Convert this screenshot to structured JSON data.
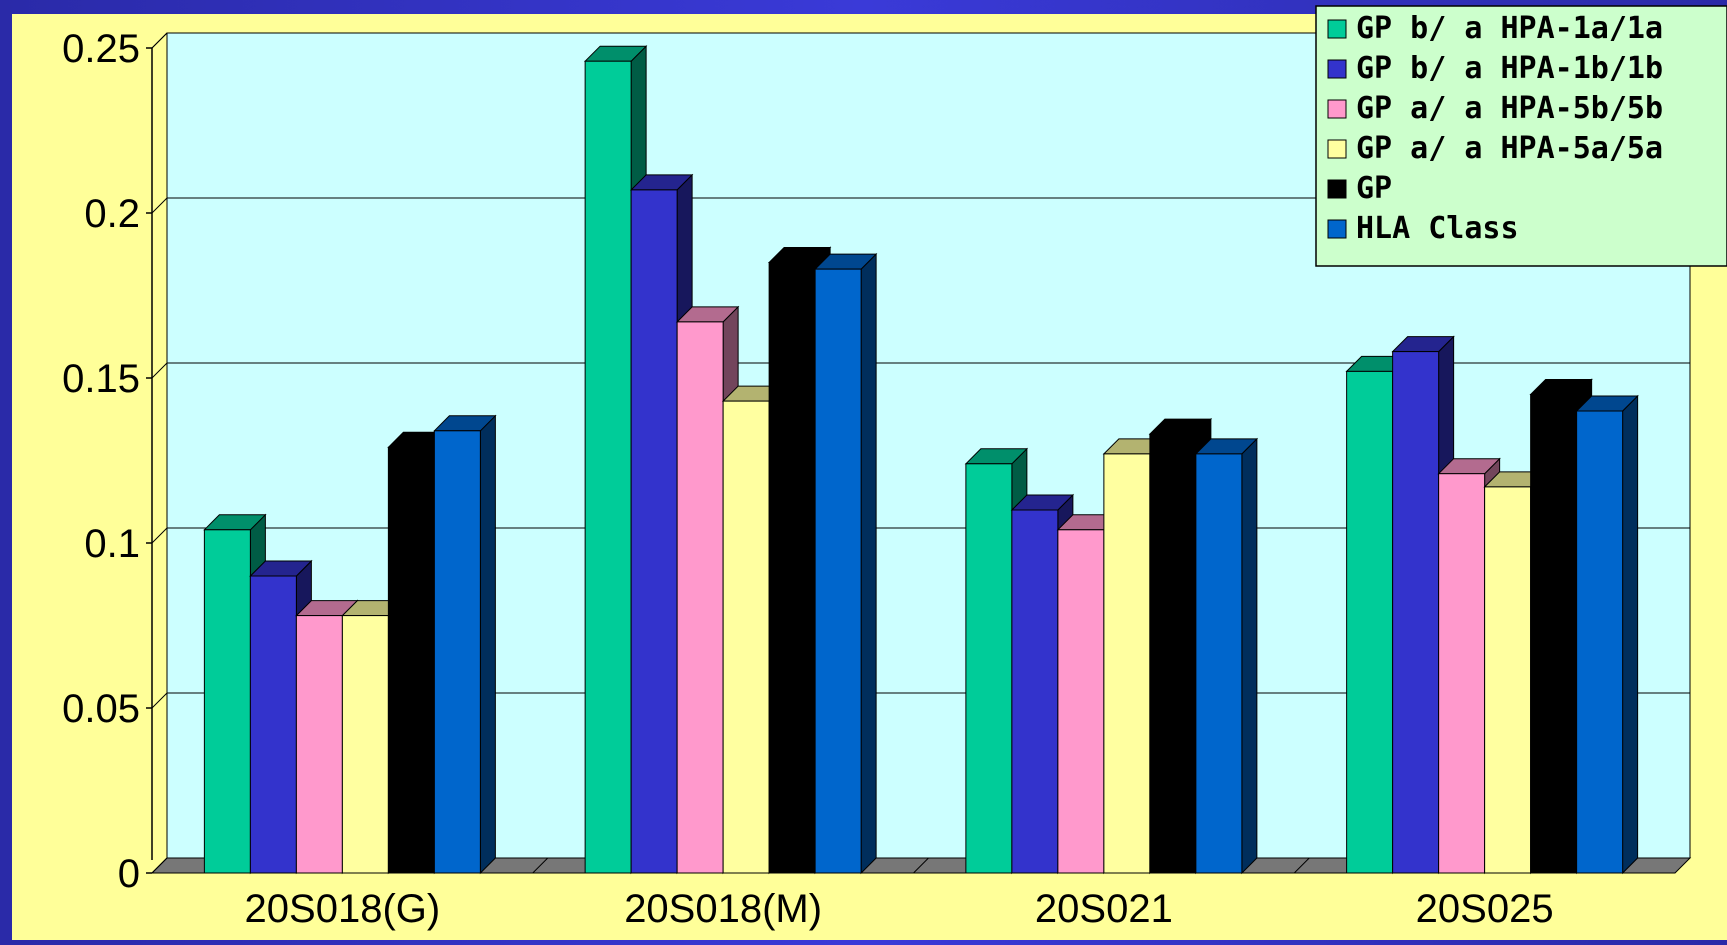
{
  "chart_data": {
    "type": "bar",
    "categories": [
      "20S018(G)",
      "20S018(M)",
      "20S021",
      "20S025"
    ],
    "series": [
      {
        "name": "GP b/ a HPA-1a/1a",
        "color": "#00cc99",
        "values": [
          0.104,
          0.246,
          0.124,
          0.152
        ]
      },
      {
        "name": "GP b/ a HPA-1b/1b",
        "color": "#3333cc",
        "values": [
          0.09,
          0.207,
          0.11,
          0.158
        ]
      },
      {
        "name": "GP a/ a HPA-5b/5b",
        "color": "#ff99cc",
        "values": [
          0.078,
          0.167,
          0.104,
          0.121
        ]
      },
      {
        "name": "GP a/ a HPA-5a/5a",
        "color": "#ffffa0",
        "values": [
          0.078,
          0.143,
          0.127,
          0.117
        ]
      },
      {
        "name": "GP",
        "color": "#000000",
        "values": [
          0.129,
          0.185,
          0.133,
          0.145
        ]
      },
      {
        "name": "HLA Class",
        "color": "#0066cc",
        "values": [
          0.134,
          0.183,
          0.127,
          0.14
        ]
      }
    ],
    "yticks": [
      "0",
      "0.05",
      "0.1",
      "0.15",
      "0.2",
      "0.25"
    ],
    "ylim": [
      0,
      0.25
    ],
    "grid": true,
    "legend_position": "top-right",
    "title": "",
    "xlabel": "",
    "ylabel": ""
  }
}
